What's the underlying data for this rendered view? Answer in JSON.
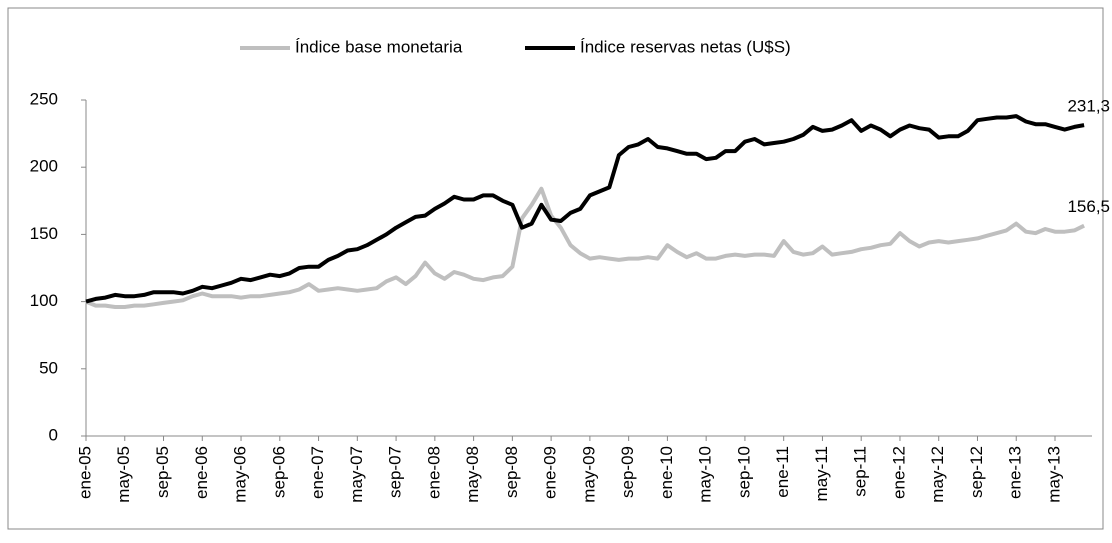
{
  "chart_data": {
    "type": "line",
    "categories": [
      "ene-05",
      null,
      null,
      null,
      "may-05",
      null,
      null,
      null,
      "sep-05",
      null,
      null,
      null,
      "ene-06",
      null,
      null,
      null,
      "may-06",
      null,
      null,
      null,
      "sep-06",
      null,
      null,
      null,
      "ene-07",
      null,
      null,
      null,
      "may-07",
      null,
      null,
      null,
      "sep-07",
      null,
      null,
      null,
      "ene-08",
      null,
      null,
      null,
      "may-08",
      null,
      null,
      null,
      "sep-08",
      null,
      null,
      null,
      "ene-09",
      null,
      null,
      null,
      "may-09",
      null,
      null,
      null,
      "sep-09",
      null,
      null,
      null,
      "ene-10",
      null,
      null,
      null,
      "may-10",
      null,
      null,
      null,
      "sep-10",
      null,
      null,
      null,
      "ene-11",
      null,
      null,
      null,
      "may-11",
      null,
      null,
      null,
      "sep-11",
      null,
      null,
      null,
      "ene-12",
      null,
      null,
      null,
      "may-12",
      null,
      null,
      null,
      "sep-12",
      null,
      null,
      null,
      "ene-13",
      null,
      null,
      null,
      "may-13",
      null,
      null,
      null
    ],
    "series": [
      {
        "name": "Índice base monetaria",
        "color": "#bfbfbf",
        "values": [
          100,
          97,
          97,
          96,
          96,
          97,
          97,
          98,
          99,
          100,
          101,
          104,
          106,
          104,
          104,
          104,
          103,
          104,
          104,
          105,
          106,
          107,
          109,
          113,
          108,
          109,
          110,
          109,
          108,
          109,
          110,
          115,
          118,
          113,
          119,
          129,
          121,
          117,
          122,
          120,
          117,
          116,
          118,
          119,
          126,
          162,
          172,
          184,
          164,
          155,
          142,
          136,
          132,
          133,
          132,
          131,
          132,
          132,
          133,
          132,
          142,
          137,
          133,
          136,
          132,
          132,
          134,
          135,
          134,
          135,
          135,
          134,
          145,
          137,
          135,
          136,
          141,
          135,
          136,
          137,
          139,
          140,
          142,
          143,
          151,
          145,
          141,
          144,
          145,
          144,
          145,
          146,
          147,
          149,
          151,
          153,
          158,
          152,
          151,
          154,
          152,
          152,
          153,
          156.5
        ],
        "value_labels": [
          null,
          null,
          null,
          null,
          null,
          null,
          null,
          null,
          null,
          null,
          null,
          null,
          null,
          null,
          null,
          null,
          null,
          null,
          null,
          null,
          null,
          null,
          null,
          null,
          null,
          null,
          null,
          null,
          null,
          null,
          null,
          null,
          null,
          null,
          null,
          null,
          null,
          null,
          null,
          null,
          null,
          null,
          null,
          null,
          null,
          null,
          null,
          null,
          null,
          null,
          null,
          null,
          null,
          null,
          null,
          null,
          null,
          null,
          null,
          null,
          null,
          null,
          null,
          null,
          null,
          null,
          null,
          null,
          null,
          null,
          null,
          null,
          null,
          null,
          null,
          null,
          null,
          null,
          null,
          null,
          null,
          null,
          null,
          null,
          null,
          null,
          null,
          null,
          null,
          null,
          null,
          null,
          null,
          null,
          null,
          null,
          null,
          null,
          null,
          null,
          null,
          null,
          null,
          "156,5"
        ]
      },
      {
        "name": "Índice reservas netas (U$S)",
        "color": "#000000",
        "values": [
          100,
          102,
          103,
          105,
          104,
          104,
          105,
          107,
          107,
          107,
          106,
          108,
          111,
          110,
          112,
          114,
          117,
          116,
          118,
          120,
          119,
          121,
          125,
          126,
          126,
          131,
          134,
          138,
          139,
          142,
          146,
          150,
          155,
          159,
          163,
          164,
          169,
          173,
          178,
          176,
          176,
          179,
          179,
          175,
          172,
          155,
          158,
          172,
          161,
          160,
          166,
          169,
          179,
          182,
          185,
          209,
          215,
          217,
          221,
          215,
          214,
          212,
          210,
          210,
          206,
          207,
          212,
          212,
          219,
          221,
          217,
          218,
          219,
          221,
          224,
          230,
          227,
          228,
          231,
          235,
          227,
          231,
          228,
          223,
          228,
          231,
          229,
          228,
          222,
          223,
          223,
          227,
          235,
          236,
          237,
          237,
          238,
          234,
          232,
          232,
          230,
          228,
          230,
          231.3
        ],
        "value_labels": [
          null,
          null,
          null,
          null,
          null,
          null,
          null,
          null,
          null,
          null,
          null,
          null,
          null,
          null,
          null,
          null,
          null,
          null,
          null,
          null,
          null,
          null,
          null,
          null,
          null,
          null,
          null,
          null,
          null,
          null,
          null,
          null,
          null,
          null,
          null,
          null,
          null,
          null,
          null,
          null,
          null,
          null,
          null,
          null,
          null,
          null,
          null,
          null,
          null,
          null,
          null,
          null,
          null,
          null,
          null,
          null,
          null,
          null,
          null,
          null,
          null,
          null,
          null,
          null,
          null,
          null,
          null,
          null,
          null,
          null,
          null,
          null,
          null,
          null,
          null,
          null,
          null,
          null,
          null,
          null,
          null,
          null,
          null,
          null,
          null,
          null,
          null,
          null,
          null,
          null,
          null,
          null,
          null,
          null,
          null,
          null,
          null,
          null,
          null,
          null,
          null,
          null,
          null,
          "231,3"
        ]
      }
    ],
    "ylim": [
      0,
      250
    ],
    "yticks": [
      0,
      50,
      100,
      150,
      200,
      250
    ],
    "legend": "top"
  }
}
